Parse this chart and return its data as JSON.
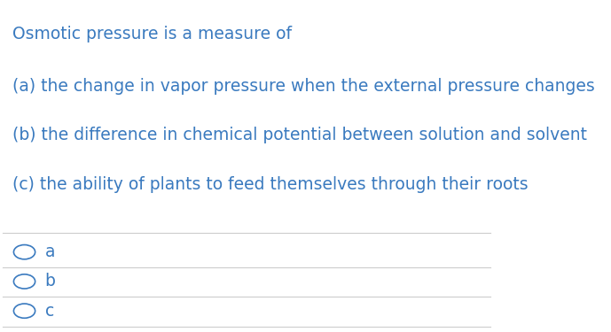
{
  "background_color": "#ffffff",
  "text_color": "#3a7abf",
  "question": "Osmotic pressure is a measure of",
  "options": [
    "(a) the change in vapor pressure when the external pressure changes",
    "(b) the difference in chemical potential between solution and solvent",
    "(c) the ability of plants to feed themselves through their roots"
  ],
  "answer_labels": [
    "a",
    "b",
    "c"
  ],
  "question_fontsize": 13.5,
  "option_fontsize": 13.5,
  "answer_fontsize": 13.5,
  "line_color": "#cccccc",
  "circle_color": "#3a7abf",
  "fig_width": 6.89,
  "fig_height": 3.75
}
